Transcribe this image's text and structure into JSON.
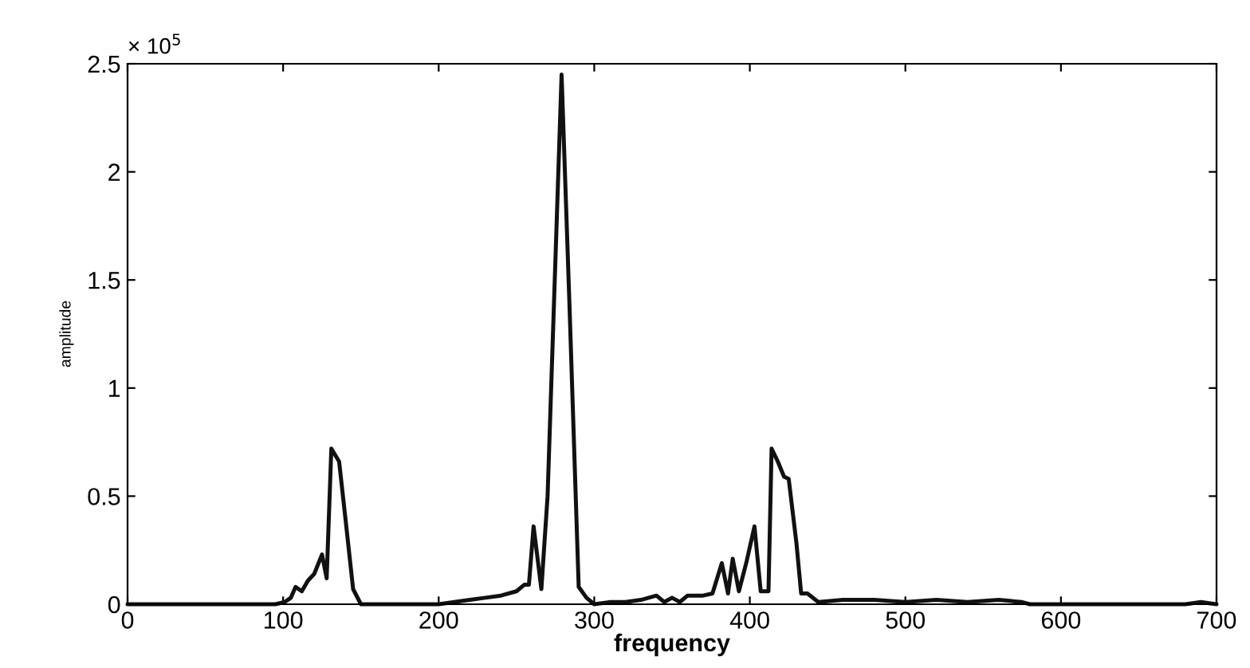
{
  "chart_data": {
    "type": "line",
    "xlabel": "frequency",
    "ylabel": "amplitude",
    "annotations": [
      "× 10$^{5}$"
    ],
    "x": [
      0,
      95,
      101,
      105,
      108,
      112,
      116,
      120,
      125,
      128,
      131,
      136,
      140,
      145,
      150,
      200,
      210,
      220,
      230,
      240,
      250,
      255,
      258,
      261,
      266,
      270,
      279,
      284,
      290,
      295,
      300,
      310,
      320,
      330,
      340,
      345,
      350,
      355,
      360,
      370,
      376,
      382,
      386,
      389,
      393,
      398,
      403,
      407,
      412,
      414,
      418,
      422,
      425,
      430,
      433,
      437,
      444,
      460,
      480,
      500,
      520,
      540,
      560,
      575,
      580,
      680,
      690,
      700
    ],
    "series": [
      {
        "color": "#111111",
        "values": [
          0,
          0,
          0.01,
          0.03,
          0.08,
          0.06,
          0.11,
          0.14,
          0.23,
          0.12,
          0.72,
          0.66,
          0.4,
          0.07,
          0,
          0,
          0.01,
          0.02,
          0.03,
          0.04,
          0.06,
          0.09,
          0.09,
          0.36,
          0.07,
          0.5,
          2.45,
          1.4,
          0.08,
          0.03,
          0,
          0.01,
          0.01,
          0.02,
          0.04,
          0.01,
          0.03,
          0.01,
          0.04,
          0.04,
          0.05,
          0.19,
          0.05,
          0.21,
          0.06,
          0.2,
          0.36,
          0.06,
          0.06,
          0.72,
          0.66,
          0.59,
          0.58,
          0.28,
          0.05,
          0.05,
          0.01,
          0.02,
          0.02,
          0.01,
          0.02,
          0.01,
          0.02,
          0.01,
          0,
          0,
          0.01,
          0
        ]
      }
    ],
    "xlim": [
      0,
      700
    ],
    "xticks": [
      0,
      100,
      200,
      300,
      400,
      500,
      600,
      700
    ],
    "ylim": [
      0,
      2.5
    ],
    "yticks": [
      0,
      0.5,
      1,
      1.5,
      2,
      2.5
    ],
    "grid": false,
    "legend": false,
    "marker": "none",
    "line_style": "solid"
  }
}
